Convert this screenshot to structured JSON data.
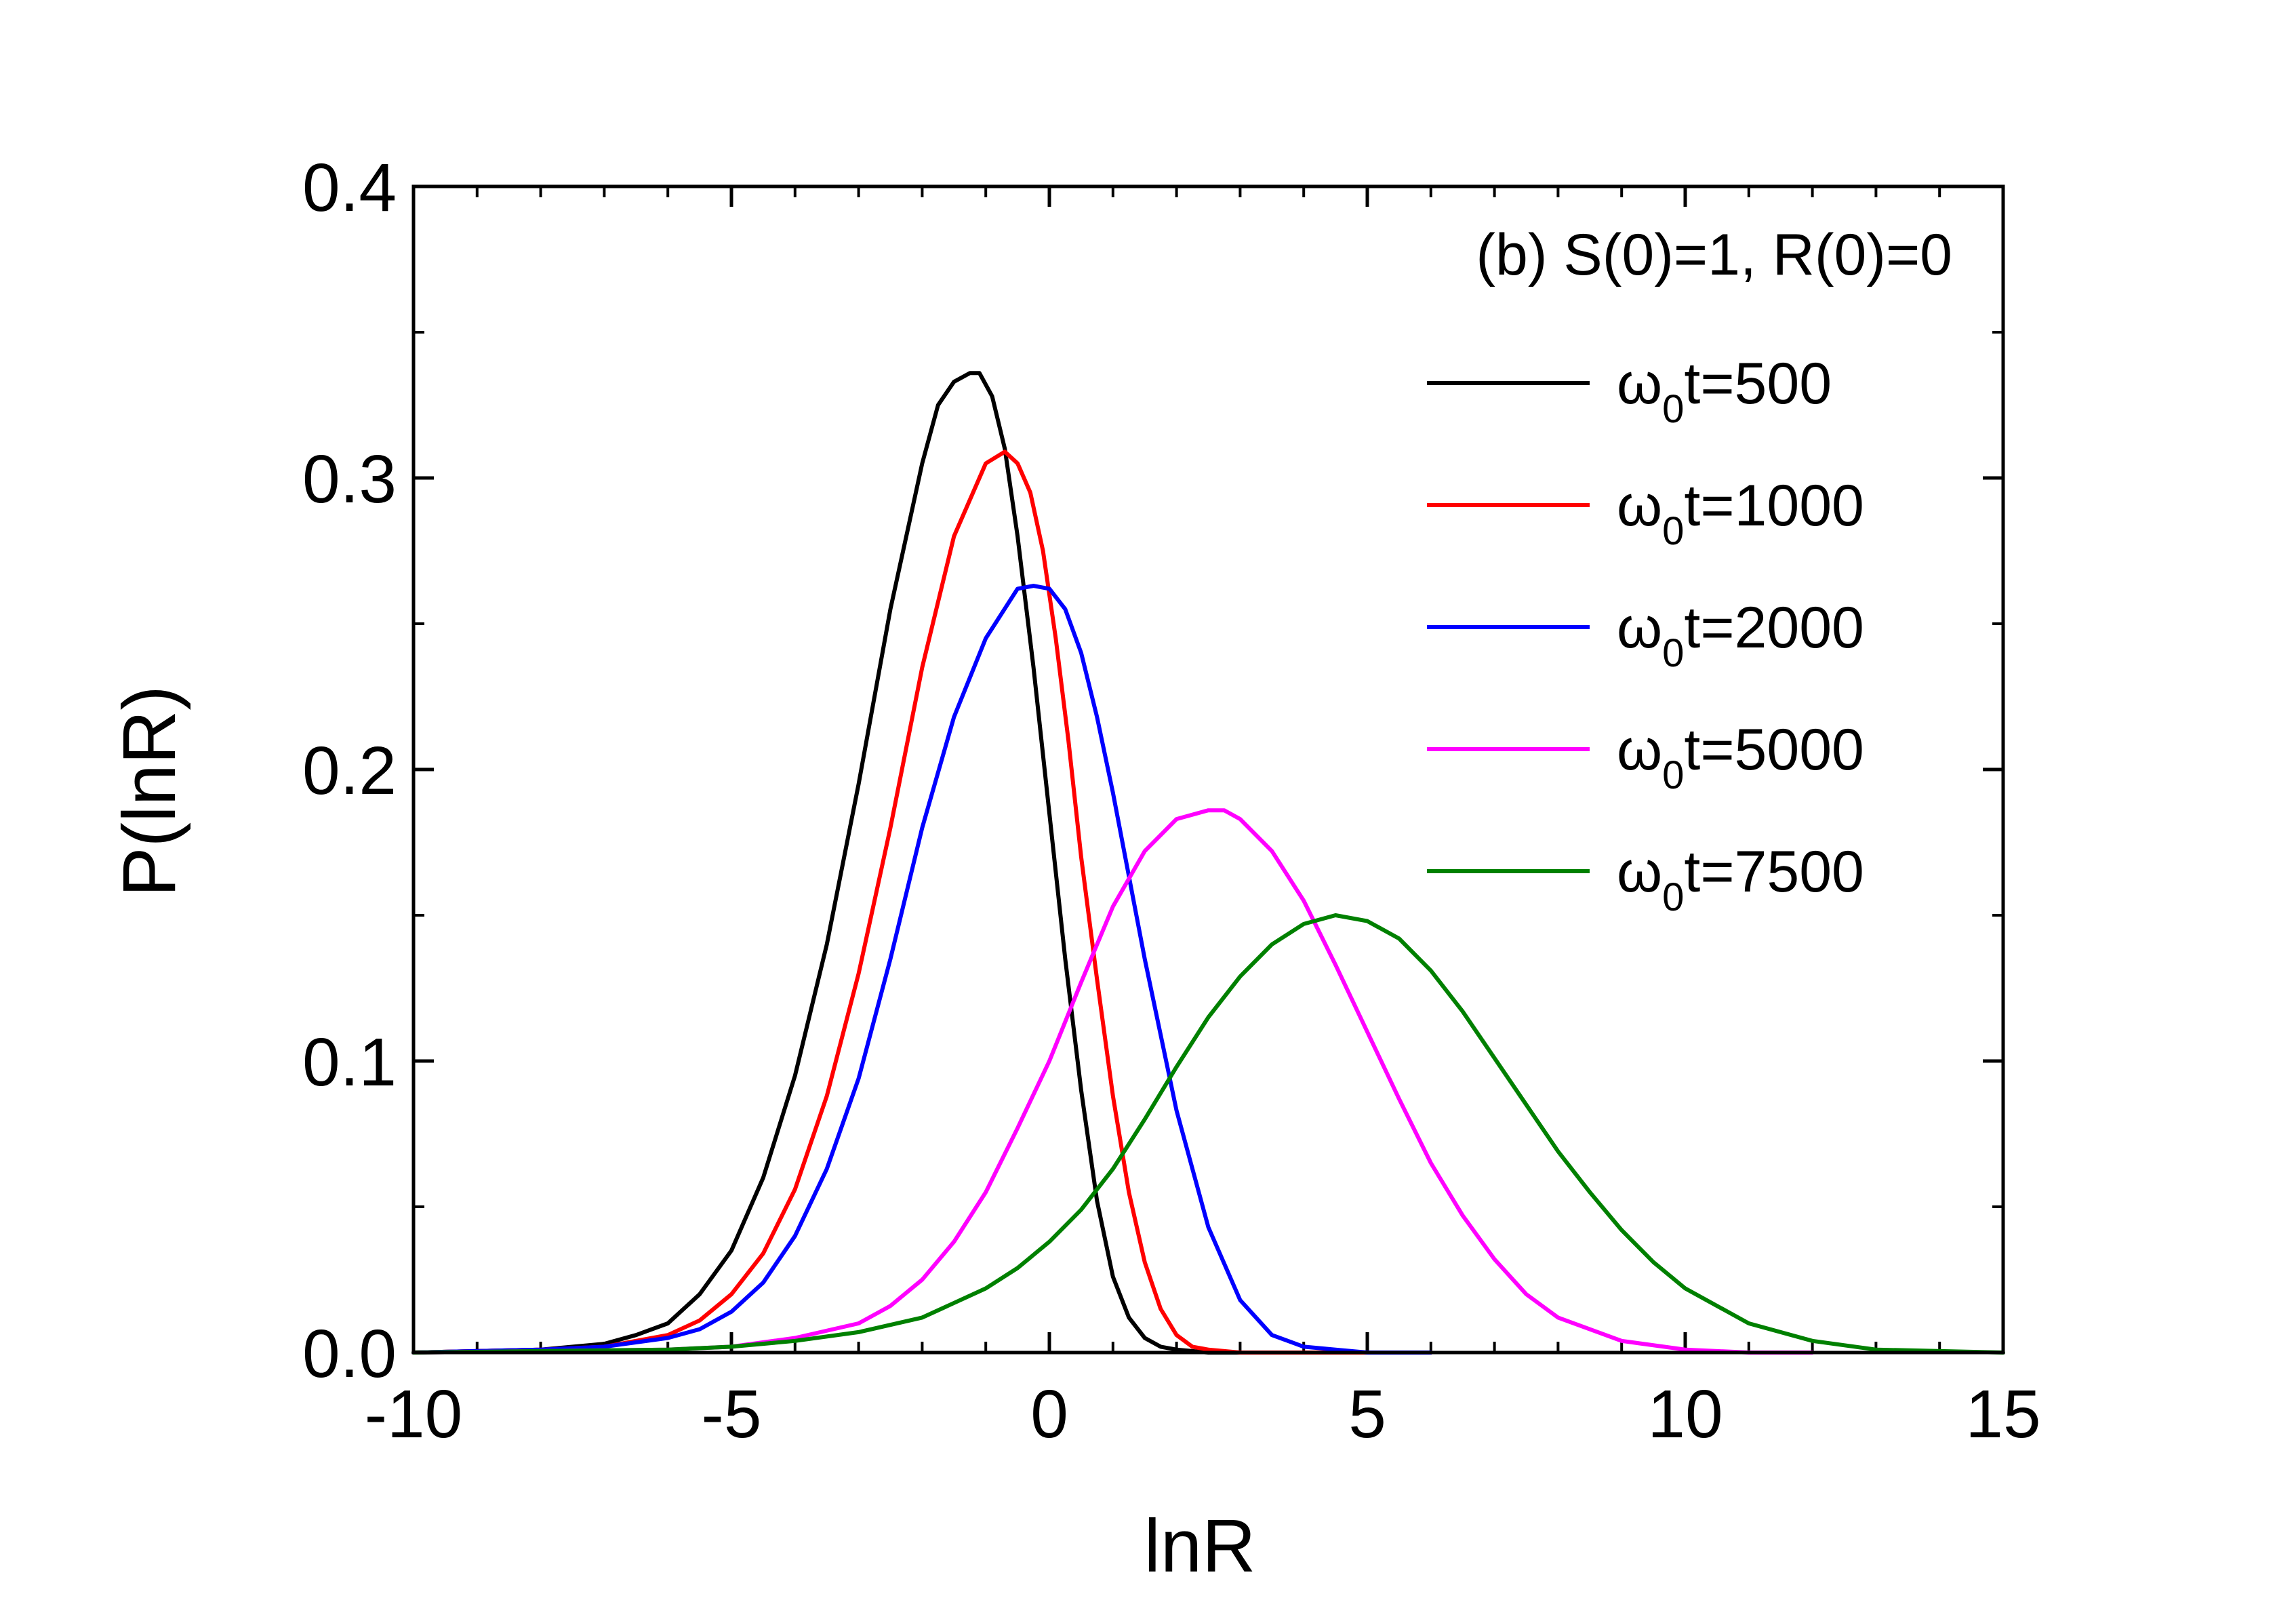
{
  "chart_data": {
    "type": "line",
    "title": "",
    "annotation": "(b) S(0)=1, R(0)=0",
    "xlabel": "lnR",
    "ylabel": "P(lnR)",
    "xlim": [
      -10,
      15
    ],
    "ylim": [
      0,
      0.4
    ],
    "xticks": [
      -10,
      -5,
      0,
      5,
      10,
      15
    ],
    "yticks": [
      0.0,
      0.1,
      0.2,
      0.3,
      0.4
    ],
    "xtick_labels": [
      "-10",
      "-5",
      "0",
      "5",
      "10",
      "15"
    ],
    "ytick_labels": [
      "0.0",
      "0.1",
      "0.2",
      "0.3",
      "0.4"
    ],
    "legend_position": "top-right",
    "series": [
      {
        "name": "ω0t=500",
        "label_prefix": "ω",
        "label_sub": "0",
        "label_suffix": "t=500",
        "color": "#000000",
        "x": [
          -10,
          -8,
          -7,
          -6.5,
          -6,
          -5.5,
          -5,
          -4.5,
          -4,
          -3.5,
          -3,
          -2.5,
          -2,
          -1.75,
          -1.5,
          -1.25,
          -1.1,
          -0.9,
          -0.7,
          -0.5,
          -0.25,
          0,
          0.25,
          0.5,
          0.75,
          1,
          1.25,
          1.5,
          1.75,
          2,
          2.5,
          3,
          4,
          6
        ],
        "y": [
          0,
          0.001,
          0.003,
          0.006,
          0.01,
          0.02,
          0.035,
          0.06,
          0.095,
          0.14,
          0.195,
          0.255,
          0.305,
          0.325,
          0.333,
          0.336,
          0.336,
          0.328,
          0.31,
          0.28,
          0.235,
          0.185,
          0.135,
          0.09,
          0.052,
          0.026,
          0.012,
          0.005,
          0.002,
          0.001,
          0,
          0,
          0,
          0
        ]
      },
      {
        "name": "ω0t=1000",
        "label_prefix": "ω",
        "label_sub": "0",
        "label_suffix": "t=1000",
        "color": "#ff0000",
        "x": [
          -10,
          -8,
          -7,
          -6,
          -5.5,
          -5,
          -4.5,
          -4,
          -3.5,
          -3,
          -2.5,
          -2,
          -1.5,
          -1,
          -0.7,
          -0.5,
          -0.3,
          -0.1,
          0.1,
          0.3,
          0.5,
          0.75,
          1,
          1.25,
          1.5,
          1.75,
          2,
          2.25,
          2.5,
          3,
          3.5,
          4,
          6
        ],
        "y": [
          0,
          0.001,
          0.002,
          0.006,
          0.011,
          0.02,
          0.034,
          0.056,
          0.088,
          0.13,
          0.18,
          0.235,
          0.28,
          0.305,
          0.309,
          0.305,
          0.295,
          0.275,
          0.245,
          0.21,
          0.17,
          0.128,
          0.088,
          0.055,
          0.031,
          0.015,
          0.006,
          0.002,
          0.001,
          0,
          0,
          0,
          0
        ]
      },
      {
        "name": "ω0t=2000",
        "label_prefix": "ω",
        "label_sub": "0",
        "label_suffix": "t=2000",
        "color": "#0000ff",
        "x": [
          -10,
          -8,
          -7,
          -6,
          -5.5,
          -5,
          -4.5,
          -4,
          -3.5,
          -3,
          -2.5,
          -2,
          -1.5,
          -1,
          -0.5,
          -0.25,
          0,
          0.25,
          0.5,
          0.75,
          1,
          1.5,
          2,
          2.5,
          3,
          3.5,
          4,
          4.5,
          5,
          5.5,
          6
        ],
        "y": [
          0,
          0.001,
          0.002,
          0.005,
          0.008,
          0.014,
          0.024,
          0.04,
          0.063,
          0.094,
          0.135,
          0.18,
          0.218,
          0.245,
          0.262,
          0.263,
          0.262,
          0.255,
          0.24,
          0.218,
          0.192,
          0.135,
          0.083,
          0.043,
          0.018,
          0.006,
          0.002,
          0.001,
          0,
          0,
          0
        ]
      },
      {
        "name": "ω0t=5000",
        "label_prefix": "ω",
        "label_sub": "0",
        "label_suffix": "t=5000",
        "color": "#ff00ff",
        "x": [
          -10,
          -6,
          -5,
          -4,
          -3,
          -2.5,
          -2,
          -1.5,
          -1,
          -0.5,
          0,
          0.5,
          1,
          1.5,
          2,
          2.5,
          2.75,
          3,
          3.5,
          4,
          4.5,
          5,
          5.5,
          6,
          6.5,
          7,
          7.5,
          8,
          9,
          10,
          11,
          12
        ],
        "y": [
          0,
          0.001,
          0.002,
          0.005,
          0.01,
          0.016,
          0.025,
          0.038,
          0.055,
          0.077,
          0.1,
          0.127,
          0.153,
          0.172,
          0.183,
          0.186,
          0.186,
          0.183,
          0.172,
          0.155,
          0.133,
          0.11,
          0.087,
          0.065,
          0.047,
          0.032,
          0.02,
          0.012,
          0.004,
          0.001,
          0,
          0
        ]
      },
      {
        "name": "ω0t=7500",
        "label_prefix": "ω",
        "label_sub": "0",
        "label_suffix": "t=7500",
        "color": "#008000",
        "x": [
          -10,
          -6,
          -5,
          -4,
          -3,
          -2,
          -1,
          -0.5,
          0,
          0.5,
          1,
          1.5,
          2,
          2.5,
          3,
          3.5,
          4,
          4.5,
          5,
          5.5,
          6,
          6.5,
          7,
          7.5,
          8,
          8.5,
          9,
          9.5,
          10,
          11,
          12,
          13,
          15
        ],
        "y": [
          0,
          0.001,
          0.002,
          0.004,
          0.007,
          0.012,
          0.022,
          0.029,
          0.038,
          0.049,
          0.063,
          0.08,
          0.098,
          0.115,
          0.129,
          0.14,
          0.147,
          0.15,
          0.148,
          0.142,
          0.131,
          0.117,
          0.101,
          0.085,
          0.069,
          0.055,
          0.042,
          0.031,
          0.022,
          0.01,
          0.004,
          0.001,
          0
        ]
      }
    ]
  }
}
